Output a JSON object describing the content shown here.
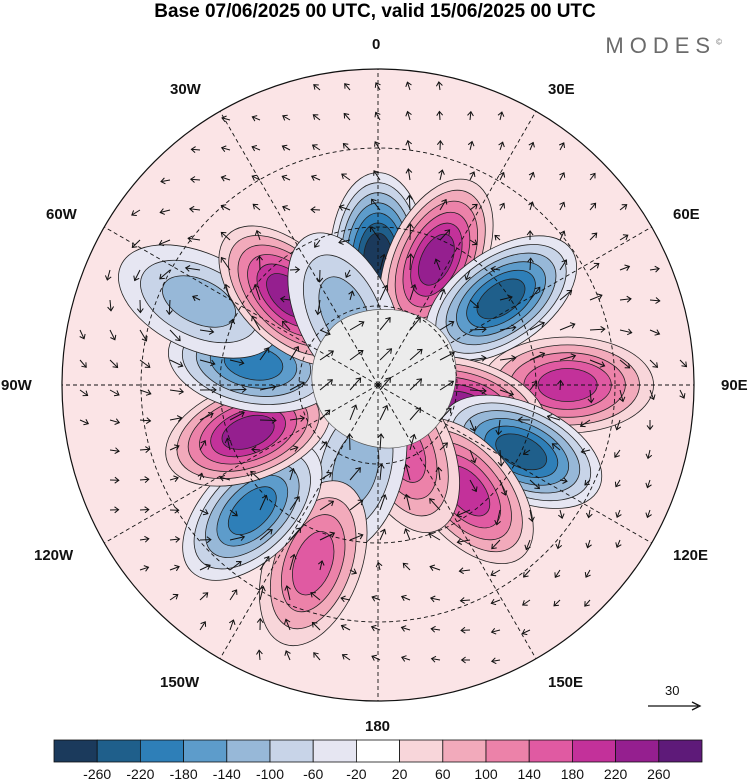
{
  "title": "Base 07/06/2025 00 UTC, valid 15/06/2025 00 UTC",
  "brand": "MODES",
  "brand_mark": "©",
  "longitude_labels": {
    "n0": "0",
    "w30": "30W",
    "e30": "30E",
    "w60": "60W",
    "e60": "60E",
    "w90": "90W",
    "e90": "90E",
    "w120": "120W",
    "e120": "120E",
    "w150": "150W",
    "e150": "150E",
    "s180": "180"
  },
  "vector_reference": {
    "value": "30"
  },
  "colorbar": {
    "labels": [
      "-260",
      "-220",
      "-180",
      "-140",
      "-100",
      "-60",
      "-20",
      "20",
      "60",
      "100",
      "140",
      "180",
      "220",
      "260"
    ],
    "colors": [
      "#1b3a5c",
      "#1f5f8b",
      "#2e7fb8",
      "#5d9ccb",
      "#97b8d8",
      "#c8d4e8",
      "#e6e6f2",
      "#ffffff",
      "#f8d6da",
      "#f2aabb",
      "#ec82a9",
      "#e05aa2",
      "#c3319a",
      "#951f8f",
      "#5e1a79"
    ]
  },
  "anomaly_centers": [
    {
      "lon": 0,
      "lat": 58,
      "value": -260
    },
    {
      "lon": 25,
      "lat": 55,
      "value": 240
    },
    {
      "lon": 55,
      "lat": 52,
      "value": -240
    },
    {
      "lon": 90,
      "lat": 42,
      "value": 200
    },
    {
      "lon": 105,
      "lat": 68,
      "value": 240
    },
    {
      "lon": 115,
      "lat": 50,
      "value": -240
    },
    {
      "lon": 140,
      "lat": 55,
      "value": 180
    },
    {
      "lon": 158,
      "lat": 72,
      "value": 140
    },
    {
      "lon": -165,
      "lat": 68,
      "value": -120
    },
    {
      "lon": -160,
      "lat": 42,
      "value": 160
    },
    {
      "lon": -135,
      "lat": 45,
      "value": -200
    },
    {
      "lon": -110,
      "lat": 55,
      "value": 220
    },
    {
      "lon": -80,
      "lat": 58,
      "value": -200
    },
    {
      "lon": -65,
      "lat": 40,
      "value": -100
    },
    {
      "lon": -45,
      "lat": 58,
      "value": 240
    },
    {
      "lon": -25,
      "lat": 70,
      "value": -100
    }
  ]
}
